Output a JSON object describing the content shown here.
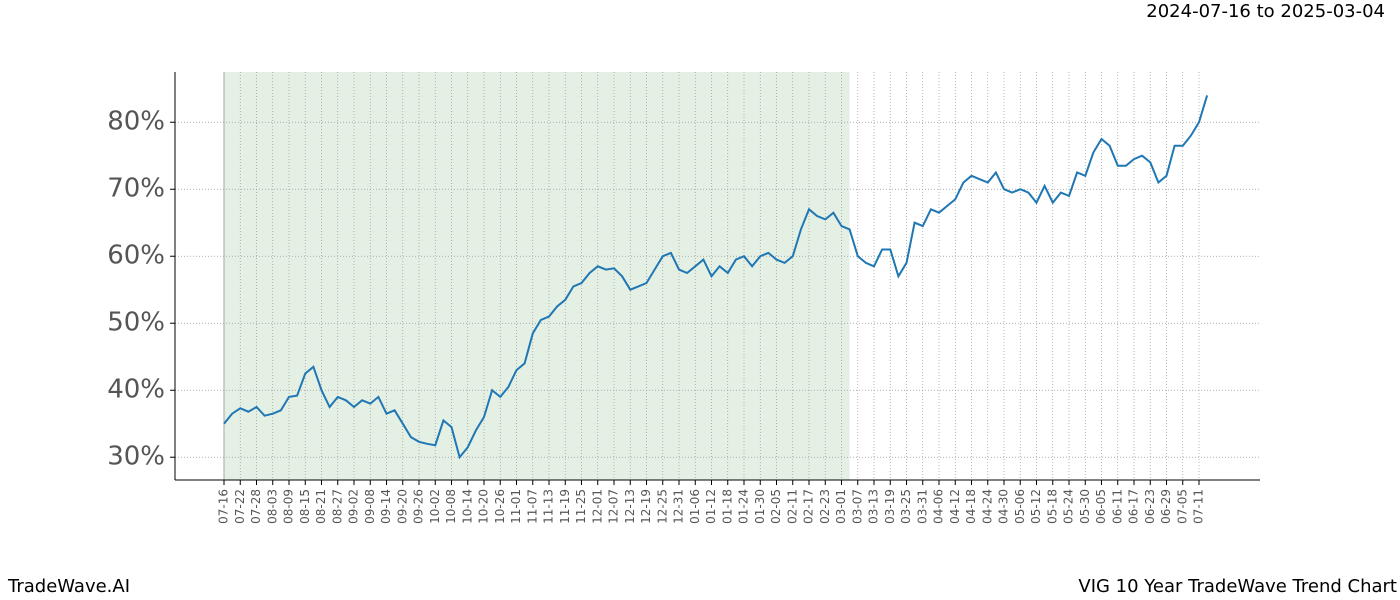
{
  "chart_data": {
    "type": "line",
    "subtitle": "2024-07-16 to 2025-03-04",
    "footer_left": "TradeWave.AI",
    "footer_right": "VIG 10 Year TradeWave Trend Chart",
    "categories": [
      "07-16",
      null,
      "07-22",
      null,
      "07-28",
      null,
      "08-03",
      null,
      "08-09",
      null,
      "08-15",
      null,
      "08-21",
      null,
      "08-27",
      null,
      "09-02",
      null,
      "09-08",
      null,
      "09-14",
      null,
      "09-20",
      null,
      "09-26",
      null,
      "10-02",
      null,
      "10-08",
      null,
      "10-14",
      null,
      "10-20",
      null,
      "10-26",
      null,
      "11-01",
      null,
      "11-07",
      null,
      "11-13",
      null,
      "11-19",
      null,
      "11-25",
      null,
      "12-01",
      null,
      "12-07",
      null,
      "12-13",
      null,
      "12-19",
      null,
      "12-25",
      null,
      "12-31",
      null,
      "01-06",
      null,
      "01-12",
      null,
      "01-18",
      null,
      "01-24",
      null,
      "01-30",
      null,
      "02-05",
      null,
      "02-11",
      null,
      "02-17",
      null,
      "02-23",
      null,
      "03-01",
      null,
      "03-07",
      null,
      "03-13",
      null,
      "03-19",
      null,
      "03-25",
      null,
      "03-31",
      null,
      "04-06",
      null,
      "04-12",
      null,
      "04-18",
      null,
      "04-24",
      null,
      "04-30",
      null,
      "05-06",
      null,
      "05-12",
      null,
      "05-18",
      null,
      "05-24",
      null,
      "05-30",
      null,
      "06-05",
      null,
      "06-11",
      null,
      "06-17",
      null,
      "06-23",
      null,
      "06-29",
      null,
      "07-05",
      null,
      "07-11",
      null
    ],
    "series": [
      {
        "color": "#1f77b4",
        "values": [
          35,
          36.5,
          37.3,
          36.8,
          37.5,
          36.2,
          36.5,
          37,
          39,
          39.2,
          42.5,
          43.5,
          40,
          37.5,
          39,
          38.5,
          37.5,
          38.5,
          38,
          39,
          36.5,
          37,
          35,
          33,
          32.3,
          32,
          31.8,
          35.5,
          34.5,
          30,
          31.5,
          34,
          36,
          40,
          39,
          40.5,
          43,
          44,
          48.5,
          50.5,
          51,
          52.5,
          53.5,
          55.5,
          56,
          57.5,
          58.5,
          58,
          58.2,
          57,
          55,
          55.5,
          56,
          58,
          60,
          60.5,
          58,
          57.5,
          58.5,
          59.5,
          57,
          58.5,
          57.5,
          59.5,
          60,
          58.5,
          60,
          60.5,
          59.5,
          59,
          60,
          64,
          67,
          66,
          65.5,
          66.5,
          64.5,
          64,
          60,
          59,
          58.5,
          61,
          61,
          57,
          59,
          65,
          64.5,
          67,
          66.5,
          67.5,
          68.5,
          71,
          72,
          71.5,
          71,
          72.5,
          70,
          69.5,
          70,
          69.5,
          68,
          70.5,
          68,
          69.5,
          69,
          72.5,
          72,
          75.5,
          77.5,
          76.5,
          73.5,
          73.5,
          74.5,
          75,
          74,
          71,
          72,
          76.5,
          76.5,
          78,
          80,
          84
        ]
      }
    ],
    "shaded_span": [
      0,
      77
    ],
    "shade_color": "#e5f0e5",
    "ylim": [
      26.6,
      87.5
    ],
    "yticks": [
      {
        "value": 30,
        "label": "30%"
      },
      {
        "value": 40,
        "label": "40%"
      },
      {
        "value": 50,
        "label": "50%"
      },
      {
        "value": 60,
        "label": "60%"
      },
      {
        "value": 70,
        "label": "70%"
      },
      {
        "value": 80,
        "label": "80%"
      }
    ],
    "grid": true
  }
}
